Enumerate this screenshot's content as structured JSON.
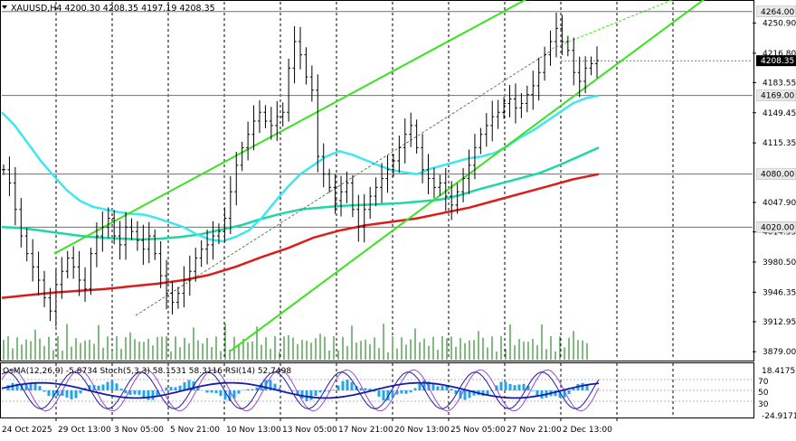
{
  "header": {
    "symbol_line": "XAUUSD,H4  4200.30 4208.35 4197.19 4208.35"
  },
  "oscillator": {
    "label": "OsMA(12,26,9) -5.8734  Stoch(5,3,3) 58.1531 58.3116  RSI(14) 52.7498",
    "scale_top": "18.4175",
    "scale_bottom": "-24.9171",
    "levels": [
      "70",
      "50",
      "30"
    ]
  },
  "colors": {
    "price_bars": "#000000",
    "fast_ma": "#3ee6f0",
    "mid_ma": "#1fd6a6",
    "slow_ma": "#dd1b1b",
    "channel": "#39e31e",
    "trend_thin": "#2a6a2a",
    "volume": "#2e8b2e",
    "osma_hist": "#21a4e6",
    "stoch_main": "#1a1aa8",
    "rsi_line": "#9b47d6",
    "level_line": "#a0a0a0",
    "price_marker_fill": "#000000"
  },
  "chart_data": {
    "type": "line",
    "symbol": "XAUUSD",
    "timeframe": "H4",
    "last_bar": {
      "open": 4200.3,
      "high": 4208.35,
      "low": 4197.19,
      "close": 4208.35
    },
    "y_axis": {
      "ylim": [
        3870,
        4275
      ],
      "ticks": [
        "4250.90",
        "4216.80",
        "4183.55",
        "4149.45",
        "4115.35",
        "4047.90",
        "4014.55",
        "3980.50",
        "3946.35",
        "3912.95",
        "3879.00"
      ]
    },
    "price_markers": {
      "current": "4208.35",
      "levels": [
        "4264.00",
        "4169.00",
        "4080.00",
        "4020.00"
      ]
    },
    "x_axis": {
      "labels": [
        "24 Oct 2025",
        "29 Oct 13:00",
        "3 Nov 05:00",
        "5 Nov 21:00",
        "10 Nov 13:00",
        "13 Nov 05:00",
        "17 Nov 21:00",
        "20 Nov 13:00",
        "25 Nov 05:00",
        "27 Nov 21:00",
        "2 Dec 13:00"
      ]
    },
    "series": [
      {
        "key": "close",
        "values": [
          4085,
          4070,
          4040,
          4010,
          3990,
          3975,
          3960,
          3940,
          3925,
          3955,
          3970,
          3985,
          3975,
          3960,
          3950,
          3990,
          4010,
          4020,
          4030,
          4010,
          4000,
          4020,
          4015,
          4005,
          3995,
          4010,
          3990,
          3965,
          3945,
          3935,
          3945,
          3960,
          3970,
          3985,
          3995,
          4000,
          4010,
          4015,
          4030,
          4060,
          4090,
          4110,
          4125,
          4140,
          4150,
          4140,
          4135,
          4145,
          4150,
          4200,
          4230,
          4215,
          4190,
          4175,
          4100,
          4080,
          4065,
          4050,
          4060,
          4070,
          4040,
          4020,
          4040,
          4055,
          4065,
          4075,
          4085,
          4095,
          4110,
          4125,
          4135,
          4110,
          4085,
          4075,
          4065,
          4070,
          4055,
          4045,
          4060,
          4075,
          4090,
          4110,
          4125,
          4135,
          4145,
          4150,
          4160,
          4165,
          4155,
          4160,
          4170,
          4180,
          4195,
          4215,
          4230,
          4245,
          4230,
          4220,
          4195,
          4185,
          4200,
          4205,
          4208.35
        ]
      },
      {
        "key": "fast_ma",
        "values": [
          4150,
          4135,
          4115,
          4095,
          4078,
          4062,
          4050,
          4043,
          4040,
          4037,
          4035,
          4034,
          4030,
          4025,
          4020,
          4012,
          4006,
          4004,
          4009,
          4016,
          4030,
          4048,
          4065,
          4080,
          4090,
          4100,
          4106,
          4102,
          4096,
          4090,
          4085,
          4082,
          4080,
          4086,
          4090,
          4094,
          4098,
          4100,
          4104,
          4112,
          4122,
          4130,
          4140,
          4150,
          4160,
          4166,
          4169
        ]
      },
      {
        "key": "mid_ma",
        "values": [
          4020,
          4019,
          4016,
          4013,
          4010,
          4008,
          4007,
          4006,
          4007,
          4009,
          4012,
          4017,
          4022,
          4029,
          4035,
          4040,
          4042,
          4044,
          4045,
          4046,
          4047,
          4049,
          4051,
          4056,
          4063,
          4069,
          4075,
          4081,
          4090,
          4100,
          4110
        ]
      },
      {
        "key": "slow_ma",
        "values": [
          3940,
          3943,
          3946,
          3948,
          3950,
          3953,
          3956,
          3960,
          3966,
          3975,
          3986,
          3996,
          4008,
          4016,
          4022,
          4026,
          4030,
          4036,
          4042,
          4050,
          4058,
          4066,
          4074,
          4080
        ]
      },
      {
        "key": "channel_upper",
        "values": [
          3990,
          4310
        ]
      },
      {
        "key": "channel_middle",
        "values": [
          3920,
          4220
        ]
      },
      {
        "key": "channel_lower",
        "values": [
          3880,
          4320
        ]
      }
    ]
  }
}
